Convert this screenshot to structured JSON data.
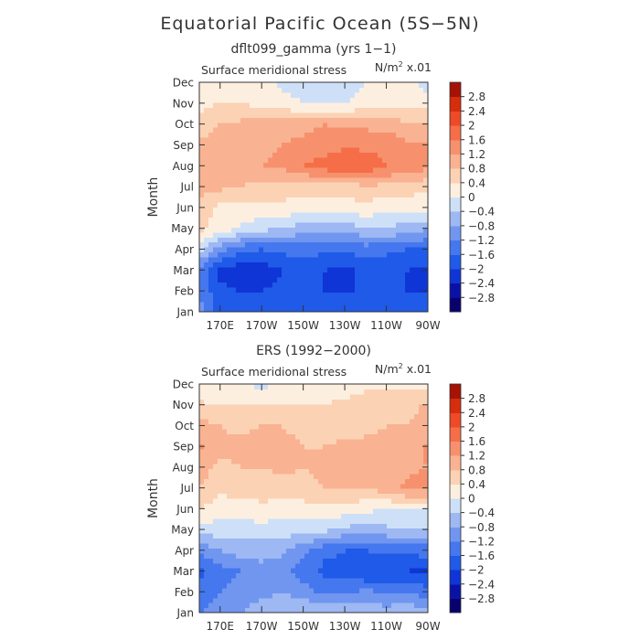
{
  "title": "Equatorial Pacific Ocean (5S−5N)",
  "chart_data": [
    {
      "type": "heatmap",
      "title": "dflt099_gamma (yrs 1−1)",
      "variable": "Surface meridional stress",
      "units_prefix": "N/m",
      "units_exp": "2",
      "units_suffix": " x.01",
      "ylabel": "Month",
      "x": [
        160,
        170,
        180,
        190,
        200,
        210,
        220,
        230,
        240,
        250,
        260,
        270
      ],
      "xlim": [
        160,
        270
      ],
      "x_ticks": [
        {
          "value": 170,
          "label": "170E"
        },
        {
          "value": 190,
          "label": "170W"
        },
        {
          "value": 210,
          "label": "150W"
        },
        {
          "value": 230,
          "label": "130W"
        },
        {
          "value": 250,
          "label": "110W"
        },
        {
          "value": 270,
          "label": "90W"
        }
      ],
      "y_ticks": [
        "Jan",
        "Feb",
        "Mar",
        "Apr",
        "May",
        "Jun",
        "Jul",
        "Aug",
        "Sep",
        "Oct",
        "Nov",
        "Dec"
      ],
      "z": [
        [
          -1.0,
          -1.8,
          -1.8,
          -1.8,
          -1.6,
          -1.6,
          -1.6,
          -1.7,
          -1.8,
          -1.8,
          -1.8,
          -1.8
        ],
        [
          -1.3,
          -1.9,
          -2.0,
          -2.0,
          -1.9,
          -1.9,
          -2.0,
          -2.0,
          -2.0,
          -2.0,
          -2.0,
          -2.0
        ],
        [
          -1.3,
          -2.1,
          -2.3,
          -2.2,
          -2.0,
          -1.9,
          -2.0,
          -2.1,
          -1.9,
          -1.9,
          -2.0,
          -2.1
        ],
        [
          -0.3,
          -1.0,
          -1.5,
          -1.6,
          -1.5,
          -1.4,
          -1.5,
          -1.5,
          -1.4,
          -1.5,
          -1.6,
          -1.6
        ],
        [
          0.5,
          0.2,
          -0.1,
          -0.3,
          -0.4,
          -0.6,
          -0.6,
          -0.6,
          -0.5,
          -0.4,
          -0.6,
          -0.8
        ],
        [
          0.6,
          0.3,
          0.3,
          0.3,
          0.3,
          0.2,
          0.1,
          0.2,
          0.3,
          0.1,
          0.1,
          0.2
        ],
        [
          1.0,
          0.9,
          0.8,
          0.6,
          0.6,
          0.6,
          0.6,
          0.6,
          0.7,
          0.7,
          0.6,
          0.5
        ],
        [
          1.0,
          1.1,
          1.2,
          1.2,
          1.3,
          1.6,
          1.8,
          2.0,
          1.9,
          1.6,
          1.5,
          1.3
        ],
        [
          0.9,
          1.1,
          1.2,
          1.1,
          1.2,
          1.3,
          1.4,
          1.5,
          1.5,
          1.5,
          1.3,
          1.2
        ],
        [
          0.5,
          0.8,
          0.9,
          1.0,
          1.0,
          1.1,
          1.2,
          1.1,
          1.1,
          1.0,
          0.9,
          0.8
        ],
        [
          0.3,
          0.4,
          0.4,
          0.3,
          0.2,
          0.0,
          -0.1,
          0.0,
          0.2,
          0.3,
          0.3,
          0.2
        ],
        [
          0.1,
          0.3,
          0.3,
          0.1,
          -0.1,
          -0.2,
          -0.3,
          -0.2,
          0.0,
          0.2,
          0.2,
          -0.2
        ]
      ]
    },
    {
      "type": "heatmap",
      "title": "ERS (1992−2000)",
      "variable": "Surface meridional stress",
      "units_prefix": "N/m",
      "units_exp": "2",
      "units_suffix": " x.01",
      "ylabel": "Month",
      "x": [
        160,
        170,
        180,
        190,
        200,
        210,
        220,
        230,
        240,
        250,
        260,
        270
      ],
      "xlim": [
        160,
        270
      ],
      "x_ticks": [
        {
          "value": 170,
          "label": "170E"
        },
        {
          "value": 190,
          "label": "170W"
        },
        {
          "value": 210,
          "label": "150W"
        },
        {
          "value": 230,
          "label": "130W"
        },
        {
          "value": 250,
          "label": "110W"
        },
        {
          "value": 270,
          "label": "90W"
        }
      ],
      "y_ticks": [
        "Jan",
        "Feb",
        "Mar",
        "Apr",
        "May",
        "Jun",
        "Jul",
        "Aug",
        "Sep",
        "Oct",
        "Nov",
        "Dec"
      ],
      "z": [
        [
          -1.2,
          -0.9,
          -0.8,
          -0.6,
          -0.5,
          -0.4,
          -0.3,
          -0.4,
          -0.5,
          -0.6,
          -0.5,
          -0.7
        ],
        [
          -1.5,
          -1.2,
          -1.0,
          -0.9,
          -0.8,
          -1.0,
          -1.3,
          -1.2,
          -1.1,
          -1.2,
          -1.2,
          -1.4
        ],
        [
          -1.7,
          -1.4,
          -1.2,
          -1.0,
          -1.1,
          -1.4,
          -1.7,
          -1.8,
          -2.0,
          -2.0,
          -2.0,
          -2.1
        ],
        [
          -1.1,
          -0.8,
          -0.6,
          -0.6,
          -0.7,
          -1.1,
          -1.5,
          -1.6,
          -1.6,
          -1.5,
          -1.5,
          -1.4
        ],
        [
          -0.2,
          -0.2,
          -0.2,
          -0.2,
          -0.2,
          -0.2,
          -0.3,
          -0.5,
          -0.6,
          -0.5,
          -0.4,
          -0.5
        ],
        [
          0.4,
          0.2,
          0.2,
          0.3,
          0.2,
          0.2,
          0.3,
          0.2,
          0.1,
          0.0,
          0.0,
          0.0
        ],
        [
          0.8,
          0.5,
          0.6,
          0.6,
          0.6,
          0.7,
          0.8,
          0.9,
          0.8,
          1.0,
          1.3,
          1.4
        ],
        [
          1.0,
          0.7,
          0.8,
          0.8,
          0.9,
          0.8,
          0.9,
          0.9,
          1.0,
          1.1,
          1.1,
          1.2
        ],
        [
          1.3,
          0.9,
          0.9,
          1.0,
          0.9,
          0.8,
          0.8,
          0.9,
          1.0,
          1.0,
          0.9,
          1.3
        ],
        [
          1.0,
          0.8,
          0.7,
          0.8,
          0.8,
          0.7,
          0.7,
          0.6,
          0.6,
          0.8,
          0.8,
          1.0
        ],
        [
          0.5,
          0.4,
          0.4,
          0.4,
          0.4,
          0.4,
          0.4,
          0.5,
          0.6,
          0.6,
          0.6,
          0.9
        ],
        [
          0.0,
          0.1,
          0.0,
          -0.1,
          0.1,
          0.1,
          0.2,
          0.2,
          0.3,
          0.3,
          0.3,
          0.2
        ]
      ]
    }
  ],
  "colorbar": {
    "bounds": [
      -3.2,
      -2.8,
      -2.4,
      -2.0,
      -1.6,
      -1.2,
      -0.8,
      -0.4,
      0.0,
      0.4,
      0.8,
      1.2,
      1.6,
      2.0,
      2.4,
      2.8,
      3.2
    ],
    "colors": [
      "#08016e",
      "#0a12a6",
      "#0f35d6",
      "#1f5ae8",
      "#4577ee",
      "#7196f0",
      "#9db8f2",
      "#cde0f8",
      "#fdefe0",
      "#fcd2b4",
      "#f9b392",
      "#f7916d",
      "#f56e48",
      "#ee4a27",
      "#d62d0c",
      "#a41305"
    ],
    "labels": [
      "-2.8",
      "-2.4",
      "-2",
      "-1.6",
      "-1.2",
      "-0.8",
      "-0.4",
      "0",
      "0.4",
      "0.8",
      "1.2",
      "1.6",
      "2",
      "2.4",
      "2.8"
    ],
    "label_texts": [
      "−2.8",
      "−2.4",
      "−2",
      "−1.6",
      "−1.2",
      "−0.8",
      "−0.4",
      "0",
      "0.4",
      "0.8",
      "1.2",
      "1.6",
      "2",
      "2.4",
      "2.8"
    ]
  }
}
